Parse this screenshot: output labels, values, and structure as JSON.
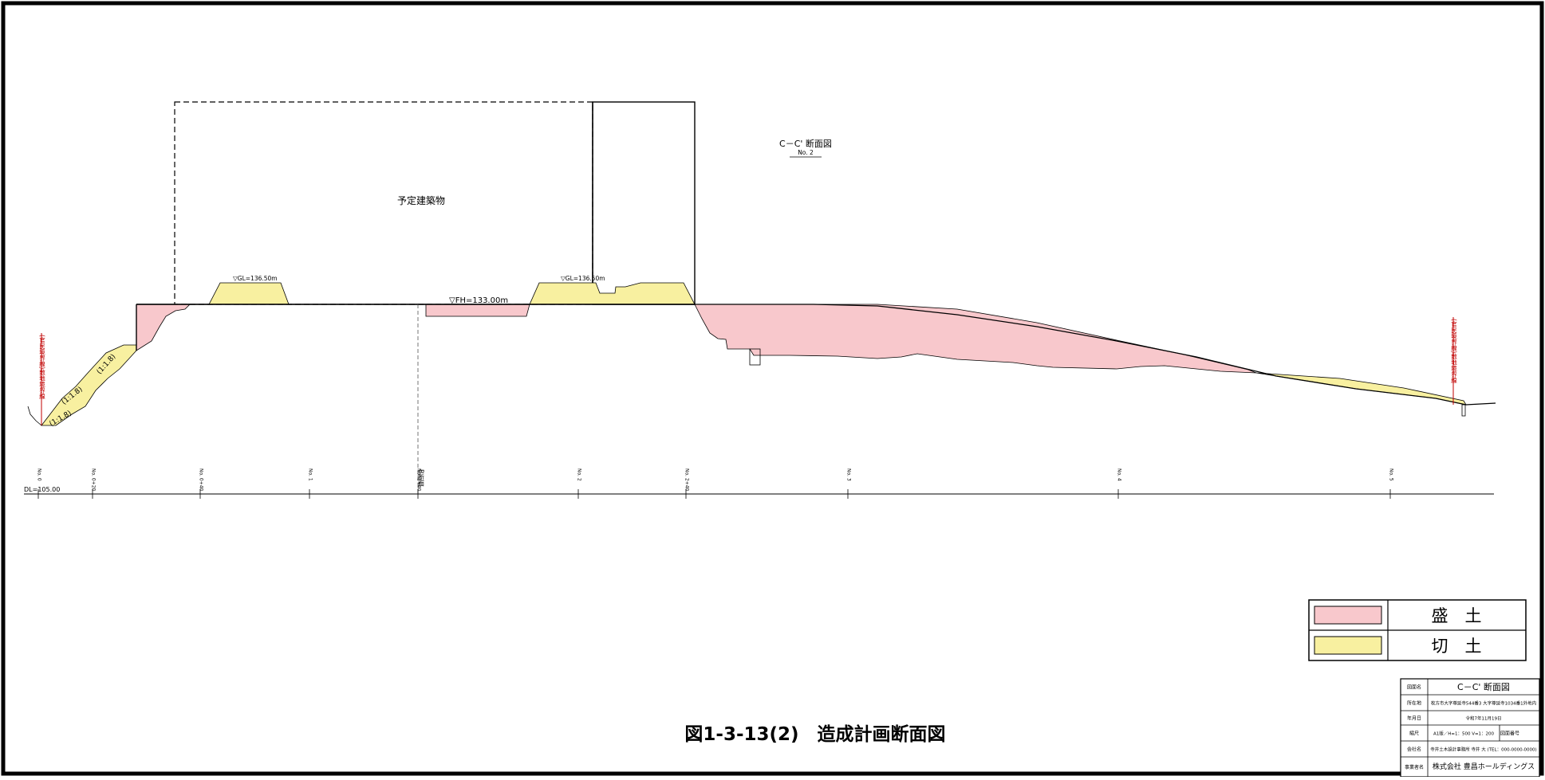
{
  "section_title": "C－C' 断面図",
  "section_no": "No. 2",
  "building_label": "予定建築物",
  "elevations": {
    "gl_left": "▽GL=136.50m",
    "gl_right": "▽GL=136.50m",
    "fh": "▽FH=133.00m"
  },
  "slopes": [
    "(1:1.8)",
    "(1:1.8)",
    "(1:1.8)"
  ],
  "boundary_labels": {
    "left": "(官民境界線)敷地境界線",
    "right": "(官民境界線)敷地境界線"
  },
  "datum": "DL=105.00",
  "stations": [
    "No. 0",
    "No. 0+20",
    "No. 0+40",
    "No. 1",
    "No. 1+40",
    "No. 2",
    "No. 2+40",
    "No. 3",
    "No. 4",
    "No. 5"
  ],
  "b_section": "B断面",
  "legend": [
    {
      "label": "盛　土",
      "color": "#f8c8cc"
    },
    {
      "label": "切　土",
      "color": "#f8f0a0"
    }
  ],
  "figure_caption": "図1-3-13(2)　造成計画断面図",
  "title_block": {
    "rows": [
      {
        "key": "図面名",
        "value": "C－C' 断面図"
      },
      {
        "key": "所在地",
        "value": "枚方市大字尊延寺544番3 大字尊延寺1034番1外地内"
      },
      {
        "key": "年月日",
        "value": "令和7年11月19日"
      },
      {
        "key": "縮尺",
        "value": "A1版／H=1：500 V=1：200",
        "extra": "図面番号"
      },
      {
        "key": "会社名",
        "value": "寺井土木設計事務所 寺井 大 (TEL：000-0000-0000)"
      },
      {
        "key": "事業者名",
        "value": "株式会社 豊昌ホールディングス"
      }
    ]
  },
  "colors": {
    "fill": "#f8c8cc",
    "cut": "#f8f0a0",
    "line": "#000000",
    "boundary": "#c00000"
  }
}
